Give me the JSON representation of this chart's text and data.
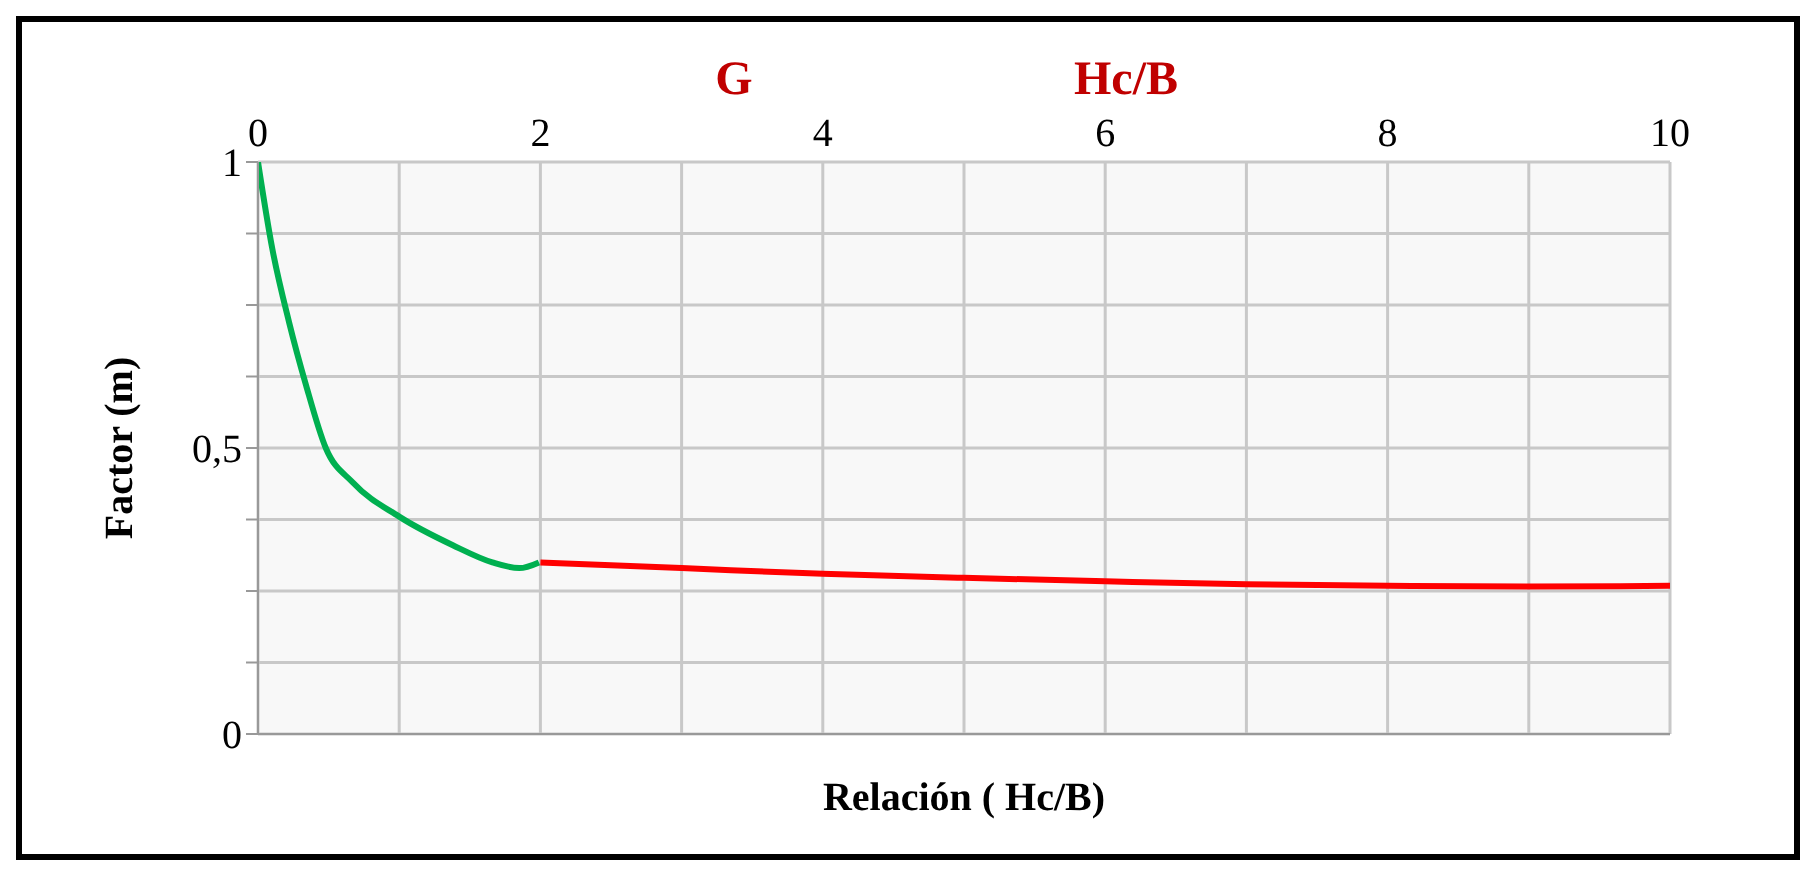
{
  "chart_data": {
    "type": "line",
    "xlabel": "Relación ( Hc/B)",
    "ylabel": "Factor    (m)",
    "annotations": [
      "G",
      "Hc/B"
    ],
    "xlim": [
      0,
      10
    ],
    "xticks": [
      0,
      {
        "value": 1,
        "label": null
      },
      2,
      {
        "value": 3,
        "label": null
      },
      4,
      {
        "value": 5,
        "label": null
      },
      6,
      {
        "value": 7,
        "label": null
      },
      8,
      {
        "value": 9,
        "label": null
      },
      10
    ],
    "ylim": [
      0,
      1
    ],
    "yticks": [
      0,
      {
        "value": 0.125,
        "label": null
      },
      {
        "value": 0.25,
        "label": null
      },
      {
        "value": 0.375,
        "label": null
      },
      {
        "value": 0.5,
        "label": "0,5"
      },
      {
        "value": 0.625,
        "label": null
      },
      {
        "value": 0.75,
        "label": null
      },
      {
        "value": 0.875,
        "label": null
      },
      1
    ],
    "grid": true,
    "marker": "none",
    "line_style": "solid",
    "series": [
      {
        "color": "#00b050",
        "x": [
          0,
          0.1,
          0.22,
          0.34,
          0.48,
          0.67,
          1.0,
          1.38,
          1.66,
          1.85,
          1.99
        ],
        "values": [
          1,
          0.85,
          0.72,
          0.61,
          0.5,
          0.44,
          0.38,
          0.33,
          0.3,
          0.29,
          0.3
        ]
      },
      {
        "color": "#ff0000",
        "x": [
          2,
          3,
          4,
          5,
          6,
          7,
          8,
          9,
          10
        ],
        "values": [
          0.3,
          0.29,
          0.28,
          0.273,
          0.267,
          0.262,
          0.259,
          0.258,
          0.259
        ]
      }
    ]
  }
}
